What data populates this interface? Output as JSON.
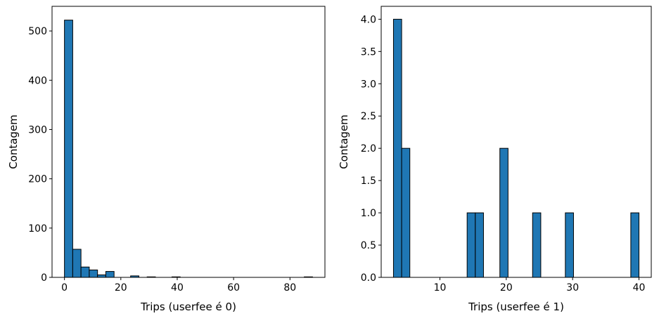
{
  "chart_data": [
    {
      "type": "bar",
      "subtype": "histogram",
      "xlabel": "Trips (userfee é 0)",
      "ylabel": "Contagem",
      "xlim": [
        -4.4,
        92.4
      ],
      "ylim": [
        0,
        550
      ],
      "xticks": [
        0,
        20,
        40,
        60,
        80
      ],
      "yticks": [
        0,
        100,
        200,
        300,
        400,
        500
      ],
      "bar_color": "#1f77b4",
      "edge_color": "#000000",
      "bins": [
        {
          "x0": 0.0,
          "x1": 2.9333,
          "count": 522
        },
        {
          "x0": 2.9333,
          "x1": 5.8667,
          "count": 57
        },
        {
          "x0": 5.8667,
          "x1": 8.8,
          "count": 21
        },
        {
          "x0": 8.8,
          "x1": 11.7333,
          "count": 15
        },
        {
          "x0": 11.7333,
          "x1": 14.6667,
          "count": 5
        },
        {
          "x0": 14.6667,
          "x1": 17.6,
          "count": 12
        },
        {
          "x0": 17.6,
          "x1": 20.5333,
          "count": 0
        },
        {
          "x0": 20.5333,
          "x1": 23.4667,
          "count": 0
        },
        {
          "x0": 23.4667,
          "x1": 26.4,
          "count": 3
        },
        {
          "x0": 26.4,
          "x1": 29.3333,
          "count": 0
        },
        {
          "x0": 29.3333,
          "x1": 32.2667,
          "count": 1
        },
        {
          "x0": 32.2667,
          "x1": 35.2,
          "count": 0
        },
        {
          "x0": 35.2,
          "x1": 38.1333,
          "count": 0
        },
        {
          "x0": 38.1333,
          "x1": 41.0667,
          "count": 1
        },
        {
          "x0": 41.0667,
          "x1": 44.0,
          "count": 0
        },
        {
          "x0": 44.0,
          "x1": 46.9333,
          "count": 0
        },
        {
          "x0": 46.9333,
          "x1": 49.8667,
          "count": 0
        },
        {
          "x0": 49.8667,
          "x1": 52.8,
          "count": 0
        },
        {
          "x0": 52.8,
          "x1": 55.7333,
          "count": 0
        },
        {
          "x0": 55.7333,
          "x1": 58.6667,
          "count": 0
        },
        {
          "x0": 58.6667,
          "x1": 61.6,
          "count": 0
        },
        {
          "x0": 61.6,
          "x1": 64.5333,
          "count": 0
        },
        {
          "x0": 64.5333,
          "x1": 67.4667,
          "count": 0
        },
        {
          "x0": 67.4667,
          "x1": 70.4,
          "count": 0
        },
        {
          "x0": 70.4,
          "x1": 73.3333,
          "count": 0
        },
        {
          "x0": 73.3333,
          "x1": 76.2667,
          "count": 0
        },
        {
          "x0": 76.2667,
          "x1": 79.2,
          "count": 0
        },
        {
          "x0": 79.2,
          "x1": 82.1333,
          "count": 0
        },
        {
          "x0": 82.1333,
          "x1": 85.0667,
          "count": 0
        },
        {
          "x0": 85.0667,
          "x1": 88.0,
          "count": 1
        }
      ]
    },
    {
      "type": "bar",
      "subtype": "histogram",
      "xlabel": "Trips (userfee é 1)",
      "ylabel": "Contagem",
      "xlim": [
        1.15,
        41.85
      ],
      "ylim": [
        0,
        4.2
      ],
      "xticks": [
        10,
        20,
        30,
        40
      ],
      "yticks": [
        0.0,
        0.5,
        1.0,
        1.5,
        2.0,
        2.5,
        3.0,
        3.5,
        4.0
      ],
      "ytick_labels": [
        "0.0",
        "0.5",
        "1.0",
        "1.5",
        "2.0",
        "2.5",
        "3.0",
        "3.5",
        "4.0"
      ],
      "bar_color": "#1f77b4",
      "edge_color": "#000000",
      "bins": [
        {
          "x0": 3.0,
          "x1": 4.2333,
          "count": 4
        },
        {
          "x0": 4.2333,
          "x1": 5.4667,
          "count": 2
        },
        {
          "x0": 5.4667,
          "x1": 6.7,
          "count": 0
        },
        {
          "x0": 6.7,
          "x1": 7.9333,
          "count": 0
        },
        {
          "x0": 7.9333,
          "x1": 9.1667,
          "count": 0
        },
        {
          "x0": 9.1667,
          "x1": 10.4,
          "count": 0
        },
        {
          "x0": 10.4,
          "x1": 11.6333,
          "count": 0
        },
        {
          "x0": 11.6333,
          "x1": 12.8667,
          "count": 0
        },
        {
          "x0": 12.8667,
          "x1": 14.1,
          "count": 0
        },
        {
          "x0": 14.1,
          "x1": 15.3333,
          "count": 1
        },
        {
          "x0": 15.3333,
          "x1": 16.5667,
          "count": 1
        },
        {
          "x0": 16.5667,
          "x1": 17.8,
          "count": 0
        },
        {
          "x0": 17.8,
          "x1": 19.0333,
          "count": 0
        },
        {
          "x0": 19.0333,
          "x1": 20.2667,
          "count": 2
        },
        {
          "x0": 20.2667,
          "x1": 21.5,
          "count": 0
        },
        {
          "x0": 21.5,
          "x1": 22.7333,
          "count": 0
        },
        {
          "x0": 22.7333,
          "x1": 23.9667,
          "count": 0
        },
        {
          "x0": 23.9667,
          "x1": 25.2,
          "count": 1
        },
        {
          "x0": 25.2,
          "x1": 26.4333,
          "count": 0
        },
        {
          "x0": 26.4333,
          "x1": 27.6667,
          "count": 0
        },
        {
          "x0": 27.6667,
          "x1": 28.9,
          "count": 0
        },
        {
          "x0": 28.9,
          "x1": 30.1333,
          "count": 1
        },
        {
          "x0": 30.1333,
          "x1": 31.3667,
          "count": 0
        },
        {
          "x0": 31.3667,
          "x1": 32.6,
          "count": 0
        },
        {
          "x0": 32.6,
          "x1": 33.8333,
          "count": 0
        },
        {
          "x0": 33.8333,
          "x1": 35.0667,
          "count": 0
        },
        {
          "x0": 35.0667,
          "x1": 36.3,
          "count": 0
        },
        {
          "x0": 36.3,
          "x1": 37.5333,
          "count": 0
        },
        {
          "x0": 37.5333,
          "x1": 38.7667,
          "count": 0
        },
        {
          "x0": 38.7667,
          "x1": 40.0,
          "count": 1
        }
      ]
    }
  ]
}
